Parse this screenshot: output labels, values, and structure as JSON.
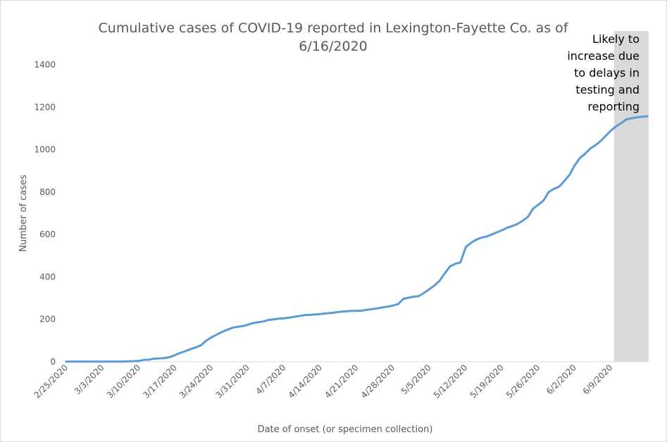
{
  "chart_data": {
    "type": "line",
    "title_line1": "Cumulative cases of COVID-19 reported in Lexington-Fayette Co.  as of",
    "title_line2": "6/16/2020",
    "xlabel": "Date of onset (or specimen collection)",
    "ylabel": "Number of cases",
    "ylim": [
      0,
      1400
    ],
    "yticks": [
      0,
      200,
      400,
      600,
      800,
      1000,
      1200,
      1400
    ],
    "x_ticks": [
      "2/25/2020",
      "3/3/2020",
      "3/10/2020",
      "3/17/2020",
      "3/24/2020",
      "3/31/2020",
      "4/7/2020",
      "4/14/2020",
      "4/21/2020",
      "4/28/2020",
      "5/5/2020",
      "5/12/2020",
      "5/19/2020",
      "5/26/2020",
      "6/2/2020",
      "6/9/2020"
    ],
    "grid": false,
    "shaded_region": {
      "from": "6/10/2020",
      "to": "6/16/2020",
      "color": "#d9d9d9"
    },
    "annotation": [
      "Likely to",
      "increase due",
      "to delays in",
      "testing and",
      "reporting"
    ],
    "series": [
      {
        "color": "#5b9bd5",
        "x": [
          "2/25/2020",
          "2/26/2020",
          "2/27/2020",
          "2/28/2020",
          "2/29/2020",
          "3/1/2020",
          "3/2/2020",
          "3/3/2020",
          "3/4/2020",
          "3/5/2020",
          "3/6/2020",
          "3/7/2020",
          "3/8/2020",
          "3/9/2020",
          "3/10/2020",
          "3/11/2020",
          "3/12/2020",
          "3/13/2020",
          "3/14/2020",
          "3/15/2020",
          "3/16/2020",
          "3/17/2020",
          "3/18/2020",
          "3/19/2020",
          "3/20/2020",
          "3/21/2020",
          "3/22/2020",
          "3/23/2020",
          "3/24/2020",
          "3/25/2020",
          "3/26/2020",
          "3/27/2020",
          "3/28/2020",
          "3/29/2020",
          "3/30/2020",
          "3/31/2020",
          "4/1/2020",
          "4/2/2020",
          "4/3/2020",
          "4/4/2020",
          "4/5/2020",
          "4/6/2020",
          "4/7/2020",
          "4/8/2020",
          "4/9/2020",
          "4/10/2020",
          "4/11/2020",
          "4/12/2020",
          "4/13/2020",
          "4/14/2020",
          "4/15/2020",
          "4/16/2020",
          "4/17/2020",
          "4/18/2020",
          "4/19/2020",
          "4/20/2020",
          "4/21/2020",
          "4/22/2020",
          "4/23/2020",
          "4/24/2020",
          "4/25/2020",
          "4/26/2020",
          "4/27/2020",
          "4/28/2020",
          "4/29/2020",
          "4/30/2020",
          "5/1/2020",
          "5/2/2020",
          "5/3/2020",
          "5/4/2020",
          "5/5/2020",
          "5/6/2020",
          "5/7/2020",
          "5/8/2020",
          "5/9/2020",
          "5/10/2020",
          "5/11/2020",
          "5/12/2020",
          "5/13/2020",
          "5/14/2020",
          "5/15/2020",
          "5/16/2020",
          "5/17/2020",
          "5/18/2020",
          "5/19/2020",
          "5/20/2020",
          "5/21/2020",
          "5/22/2020",
          "5/23/2020",
          "5/24/2020",
          "5/25/2020",
          "5/26/2020",
          "5/27/2020",
          "5/28/2020",
          "5/29/2020",
          "5/30/2020",
          "5/31/2020",
          "6/1/2020",
          "6/2/2020",
          "6/3/2020",
          "6/4/2020",
          "6/5/2020",
          "6/6/2020",
          "6/7/2020",
          "6/8/2020",
          "6/9/2020",
          "6/10/2020",
          "6/11/2020",
          "6/12/2020",
          "6/13/2020",
          "6/14/2020",
          "6/15/2020",
          "6/16/2020"
        ],
        "values": [
          1,
          1,
          1,
          1,
          1,
          1,
          1,
          1,
          1,
          1,
          1,
          1,
          2,
          3,
          4,
          9,
          10,
          15,
          16,
          18,
          22,
          32,
          42,
          50,
          60,
          68,
          78,
          100,
          115,
          128,
          140,
          150,
          160,
          165,
          168,
          175,
          182,
          186,
          190,
          197,
          200,
          203,
          205,
          208,
          212,
          216,
          220,
          221,
          223,
          225,
          228,
          230,
          233,
          236,
          238,
          240,
          240,
          241,
          245,
          248,
          252,
          256,
          260,
          265,
          272,
          297,
          302,
          307,
          310,
          325,
          342,
          360,
          383,
          418,
          450,
          462,
          468,
          540,
          560,
          575,
          585,
          590,
          600,
          610,
          620,
          632,
          640,
          650,
          665,
          683,
          722,
          740,
          760,
          800,
          815,
          825,
          852,
          880,
          925,
          960,
          980,
          1005,
          1020,
          1040,
          1065,
          1090,
          1110,
          1125,
          1143,
          1148,
          1152,
          1155,
          1157
        ]
      }
    ]
  }
}
